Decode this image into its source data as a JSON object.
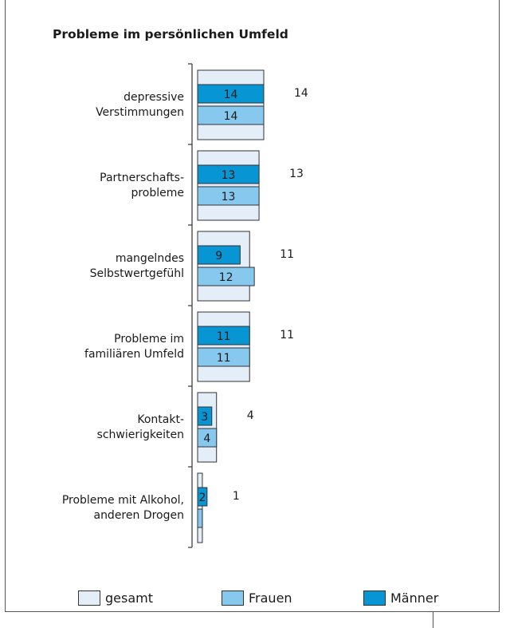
{
  "chart_data": {
    "type": "bar",
    "title": "Probleme im persönlichen Umfeld",
    "categories": [
      [
        "depressive",
        "Verstimmungen"
      ],
      [
        "Partnerschafts-",
        "probleme"
      ],
      [
        "mangelndes",
        "Selbstwertgefühl"
      ],
      [
        "Probleme im",
        "familiären Umfeld"
      ],
      [
        "Kontakt-",
        "schwierigkeiten"
      ],
      [
        "Probleme mit Alkohol,",
        "anderen Drogen"
      ]
    ],
    "series": [
      {
        "name": "gesamt",
        "values": [
          14,
          13,
          11,
          11,
          4,
          1
        ],
        "color": "#e4eef8"
      },
      {
        "name": "Männer",
        "values": [
          14,
          13,
          9,
          11,
          3,
          2
        ],
        "color": "#0796d3"
      },
      {
        "name": "Frauen",
        "values": [
          14,
          13,
          12,
          11,
          4,
          1
        ],
        "color": "#86c8ee"
      }
    ],
    "data_labels": {
      "gesamt": [
        "14",
        "13",
        "11",
        "11",
        "4",
        "1"
      ],
      "Männer": [
        "14",
        "13",
        "9",
        "11",
        "3",
        "2"
      ],
      "Frauen": [
        "14",
        "13",
        "12",
        "11",
        "4",
        ""
      ]
    },
    "orientation": "horizontal",
    "xlim": [
      0,
      14
    ],
    "legend": "bottom",
    "grid": false
  },
  "legend": [
    {
      "label": "gesamt",
      "color": "#e4eef8"
    },
    {
      "label": "Frauen",
      "color": "#86c8ee"
    },
    {
      "label": "Männer",
      "color": "#0796d3"
    }
  ]
}
